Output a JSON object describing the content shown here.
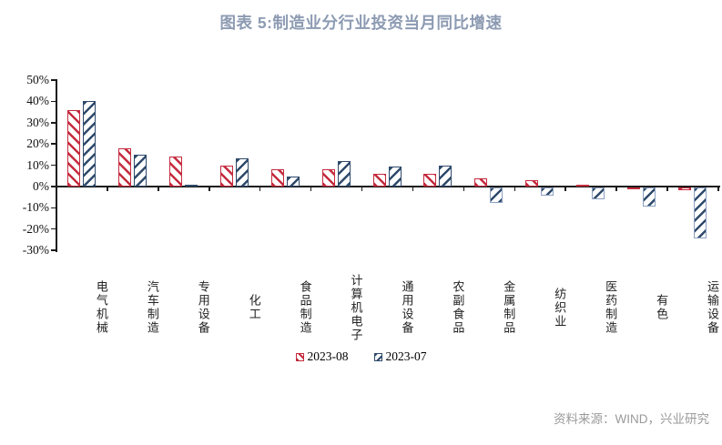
{
  "header": {
    "title": "图表 5:制造业分行业投资当月同比增速"
  },
  "footer": {
    "source": "资料来源：WIND，兴业研究"
  },
  "colors": {
    "title": "#8c9ab2",
    "series_red": "#c52b3e",
    "series_blue": "#2e4a6b",
    "series_blue_negative_outline": "#8ba0c0",
    "axis": "#1a1a1a",
    "source_text": "#9a9a9a",
    "background": "#ffffff"
  },
  "chart_data": {
    "type": "bar",
    "title": "图表 5:制造业分行业投资当月同比增速",
    "xlabel": "",
    "ylabel": "",
    "ylim": [
      -30,
      50
    ],
    "grid": false,
    "legend_position": "bottom",
    "y_ticks": [
      50,
      40,
      30,
      20,
      10,
      0,
      -10,
      -20,
      -30
    ],
    "y_tick_labels": [
      "50%",
      "40%",
      "30%",
      "20%",
      "10%",
      "0%",
      "-10%",
      "-20%",
      "-30%"
    ],
    "categories": [
      "电气机械",
      "汽车制造",
      "专用设备",
      "化工",
      "食品制造",
      "计算机电子",
      "通用设备",
      "农副食品",
      "金属制品",
      "纺织业",
      "医药制造",
      "有色",
      "运输设备"
    ],
    "series": [
      {
        "name": "2023-08",
        "color": "#c52b3e",
        "hatch": "\\",
        "values": [
          36,
          18,
          14,
          10,
          8,
          8,
          6,
          6,
          4,
          3,
          0.5,
          -1,
          -1.5
        ]
      },
      {
        "name": "2023-07",
        "color": "#2e4a6b",
        "hatch": "/",
        "values": [
          40,
          15,
          0.5,
          13,
          4.5,
          12,
          9.5,
          10,
          -7.5,
          -4,
          -5.5,
          -9,
          -24
        ]
      }
    ]
  }
}
